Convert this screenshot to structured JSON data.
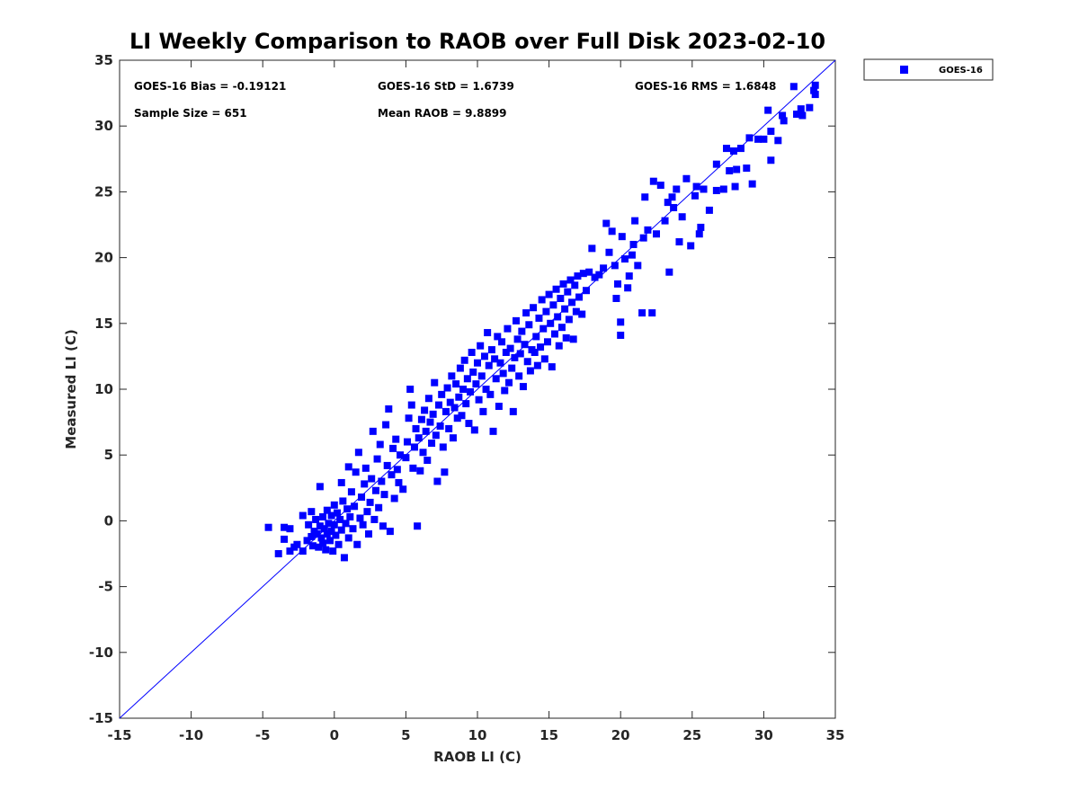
{
  "chart_data": {
    "type": "scatter",
    "title": "LI Weekly Comparison to RAOB over Full Disk 2023-02-10",
    "xlabel": "RAOB LI (C)",
    "ylabel": "Measured LI (C)",
    "xlim": [
      -15,
      35
    ],
    "ylim": [
      -15,
      35
    ],
    "xticks": [
      "-15",
      "-10",
      "-5",
      "0",
      "5",
      "10",
      "15",
      "20",
      "25",
      "30",
      "35"
    ],
    "yticks": [
      "-15",
      "-10",
      "-5",
      "0",
      "5",
      "10",
      "15",
      "20",
      "25",
      "30",
      "35"
    ],
    "grid": false,
    "legend_position": "outside-top-right",
    "stats": {
      "bias": "GOES-16 Bias = -0.19121",
      "std": "GOES-16 StD = 1.6739",
      "rms": "GOES-16 RMS = 1.6848",
      "sample_size": "Sample Size = 651",
      "mean_raob": "Mean RAOB = 9.8899"
    },
    "reference_line": {
      "x": [
        -15,
        35
      ],
      "y": [
        -15,
        35
      ],
      "color": "#0000ff"
    },
    "series": [
      {
        "name": "GOES-16",
        "color": "#0000ff",
        "marker": "square",
        "points": [
          [
            -4.6,
            -0.5
          ],
          [
            -3.9,
            -2.5
          ],
          [
            -3.5,
            -0.5
          ],
          [
            -3.5,
            -1.4
          ],
          [
            -3.1,
            -0.6
          ],
          [
            -3.1,
            -2.3
          ],
          [
            -2.8,
            -2.0
          ],
          [
            -2.6,
            -1.8
          ],
          [
            -2.2,
            0.4
          ],
          [
            -2.2,
            -2.3
          ],
          [
            -1.9,
            -1.5
          ],
          [
            -1.8,
            -0.3
          ],
          [
            -1.6,
            0.7
          ],
          [
            -1.6,
            -1.2
          ],
          [
            -1.5,
            -1.9
          ],
          [
            -1.4,
            -0.8
          ],
          [
            -1.3,
            0.1
          ],
          [
            -1.2,
            -1.0
          ],
          [
            -1.1,
            -2.0
          ],
          [
            -1.0,
            2.6
          ],
          [
            -1.0,
            -0.4
          ],
          [
            -0.9,
            -1.3
          ],
          [
            -0.8,
            0.3
          ],
          [
            -0.8,
            -1.7
          ],
          [
            -0.7,
            -0.6
          ],
          [
            -0.6,
            -2.2
          ],
          [
            -0.5,
            0.8
          ],
          [
            -0.5,
            -1.0
          ],
          [
            -0.4,
            -0.2
          ],
          [
            -0.3,
            -1.5
          ],
          [
            -0.2,
            0.4
          ],
          [
            -0.2,
            -0.8
          ],
          [
            -0.1,
            -2.3
          ],
          [
            0.0,
            1.2
          ],
          [
            0.0,
            -0.3
          ],
          [
            0.1,
            -1.1
          ],
          [
            0.2,
            0.6
          ],
          [
            0.3,
            -1.8
          ],
          [
            0.4,
            0.1
          ],
          [
            0.5,
            -0.7
          ],
          [
            0.5,
            2.9
          ],
          [
            0.6,
            1.5
          ],
          [
            0.7,
            -2.8
          ],
          [
            0.8,
            -0.2
          ],
          [
            0.9,
            0.9
          ],
          [
            1.0,
            4.1
          ],
          [
            1.0,
            -1.3
          ],
          [
            1.1,
            0.3
          ],
          [
            1.2,
            2.2
          ],
          [
            1.3,
            -0.6
          ],
          [
            1.4,
            1.1
          ],
          [
            1.5,
            3.7
          ],
          [
            1.6,
            -1.8
          ],
          [
            1.7,
            5.2
          ],
          [
            1.8,
            0.2
          ],
          [
            1.9,
            1.8
          ],
          [
            2.0,
            -0.3
          ],
          [
            2.1,
            2.8
          ],
          [
            2.2,
            4.0
          ],
          [
            2.3,
            0.7
          ],
          [
            2.4,
            -1.0
          ],
          [
            2.5,
            1.4
          ],
          [
            2.6,
            3.2
          ],
          [
            2.7,
            6.8
          ],
          [
            2.8,
            0.1
          ],
          [
            2.9,
            2.3
          ],
          [
            3.0,
            4.7
          ],
          [
            3.1,
            1.0
          ],
          [
            3.2,
            5.8
          ],
          [
            3.3,
            3.0
          ],
          [
            3.4,
            -0.4
          ],
          [
            3.5,
            2.0
          ],
          [
            3.6,
            7.3
          ],
          [
            3.7,
            4.2
          ],
          [
            3.8,
            8.5
          ],
          [
            3.9,
            -0.8
          ],
          [
            4.0,
            3.5
          ],
          [
            4.1,
            5.5
          ],
          [
            4.2,
            1.7
          ],
          [
            4.3,
            6.2
          ],
          [
            4.4,
            3.9
          ],
          [
            4.5,
            2.9
          ],
          [
            4.6,
            5.0
          ],
          [
            4.8,
            2.4
          ],
          [
            5.0,
            4.8
          ],
          [
            5.1,
            6.0
          ],
          [
            5.2,
            7.8
          ],
          [
            5.3,
            10.0
          ],
          [
            5.4,
            8.8
          ],
          [
            5.5,
            4.0
          ],
          [
            5.6,
            5.6
          ],
          [
            5.7,
            7.0
          ],
          [
            5.8,
            -0.4
          ],
          [
            5.9,
            6.3
          ],
          [
            6.0,
            3.8
          ],
          [
            6.1,
            7.7
          ],
          [
            6.2,
            5.2
          ],
          [
            6.3,
            8.4
          ],
          [
            6.4,
            6.8
          ],
          [
            6.5,
            4.6
          ],
          [
            6.6,
            9.3
          ],
          [
            6.7,
            7.5
          ],
          [
            6.8,
            5.9
          ],
          [
            6.9,
            8.1
          ],
          [
            7.0,
            10.5
          ],
          [
            7.1,
            6.5
          ],
          [
            7.2,
            3.0
          ],
          [
            7.3,
            8.8
          ],
          [
            7.4,
            7.2
          ],
          [
            7.5,
            9.6
          ],
          [
            7.6,
            5.6
          ],
          [
            7.7,
            3.7
          ],
          [
            7.8,
            8.3
          ],
          [
            7.9,
            10.1
          ],
          [
            8.0,
            7.0
          ],
          [
            8.1,
            9.0
          ],
          [
            8.2,
            11.0
          ],
          [
            8.3,
            6.3
          ],
          [
            8.4,
            8.6
          ],
          [
            8.5,
            10.4
          ],
          [
            8.6,
            7.8
          ],
          [
            8.7,
            9.4
          ],
          [
            8.8,
            11.6
          ],
          [
            8.9,
            8.0
          ],
          [
            9.0,
            10.0
          ],
          [
            9.1,
            12.2
          ],
          [
            9.2,
            8.9
          ],
          [
            9.3,
            10.8
          ],
          [
            9.4,
            7.4
          ],
          [
            9.5,
            9.8
          ],
          [
            9.6,
            12.8
          ],
          [
            9.7,
            11.3
          ],
          [
            9.8,
            6.9
          ],
          [
            9.9,
            10.4
          ],
          [
            10.0,
            12.0
          ],
          [
            10.1,
            9.2
          ],
          [
            10.2,
            13.3
          ],
          [
            10.3,
            11.0
          ],
          [
            10.4,
            8.3
          ],
          [
            10.5,
            12.5
          ],
          [
            10.6,
            10.0
          ],
          [
            10.7,
            14.3
          ],
          [
            10.8,
            11.8
          ],
          [
            10.9,
            9.6
          ],
          [
            11.0,
            13.0
          ],
          [
            11.1,
            6.8
          ],
          [
            11.2,
            12.3
          ],
          [
            11.3,
            10.8
          ],
          [
            11.4,
            14.0
          ],
          [
            11.5,
            8.7
          ],
          [
            11.6,
            12.0
          ],
          [
            11.7,
            13.6
          ],
          [
            11.8,
            11.2
          ],
          [
            11.9,
            9.9
          ],
          [
            12.0,
            12.8
          ],
          [
            12.1,
            14.6
          ],
          [
            12.2,
            10.5
          ],
          [
            12.3,
            13.1
          ],
          [
            12.4,
            11.6
          ],
          [
            12.5,
            8.3
          ],
          [
            12.6,
            12.4
          ],
          [
            12.7,
            15.2
          ],
          [
            12.8,
            13.8
          ],
          [
            12.9,
            11.0
          ],
          [
            13.0,
            12.7
          ],
          [
            13.1,
            14.4
          ],
          [
            13.2,
            10.2
          ],
          [
            13.3,
            13.4
          ],
          [
            13.4,
            15.8
          ],
          [
            13.5,
            12.1
          ],
          [
            13.6,
            14.9
          ],
          [
            13.7,
            11.4
          ],
          [
            13.8,
            13.0
          ],
          [
            13.9,
            16.2
          ],
          [
            14.0,
            12.8
          ],
          [
            14.1,
            14.0
          ],
          [
            14.2,
            11.8
          ],
          [
            14.3,
            15.4
          ],
          [
            14.4,
            13.2
          ],
          [
            14.5,
            16.8
          ],
          [
            14.6,
            14.6
          ],
          [
            14.7,
            12.3
          ],
          [
            14.8,
            15.9
          ],
          [
            14.9,
            13.6
          ],
          [
            15.0,
            17.2
          ],
          [
            15.1,
            15.0
          ],
          [
            15.2,
            11.7
          ],
          [
            15.3,
            16.4
          ],
          [
            15.4,
            14.2
          ],
          [
            15.5,
            17.6
          ],
          [
            15.6,
            15.5
          ],
          [
            15.7,
            13.3
          ],
          [
            15.8,
            16.9
          ],
          [
            15.9,
            14.7
          ],
          [
            16.0,
            18.0
          ],
          [
            16.1,
            16.1
          ],
          [
            16.2,
            13.9
          ],
          [
            16.3,
            17.4
          ],
          [
            16.4,
            15.3
          ],
          [
            16.5,
            18.3
          ],
          [
            16.6,
            16.6
          ],
          [
            16.7,
            13.8
          ],
          [
            16.8,
            17.9
          ],
          [
            16.9,
            15.9
          ],
          [
            17.0,
            18.6
          ],
          [
            17.1,
            17.0
          ],
          [
            17.3,
            15.7
          ],
          [
            17.4,
            18.8
          ],
          [
            17.6,
            17.5
          ],
          [
            17.8,
            18.9
          ],
          [
            18.0,
            20.7
          ],
          [
            18.2,
            18.5
          ],
          [
            18.5,
            18.7
          ],
          [
            18.8,
            19.2
          ],
          [
            19.0,
            22.6
          ],
          [
            19.2,
            20.4
          ],
          [
            19.4,
            22.0
          ],
          [
            19.6,
            19.4
          ],
          [
            19.7,
            16.9
          ],
          [
            19.8,
            18.0
          ],
          [
            20.0,
            15.1
          ],
          [
            20.0,
            14.1
          ],
          [
            20.1,
            21.6
          ],
          [
            20.3,
            19.9
          ],
          [
            20.5,
            17.7
          ],
          [
            20.6,
            18.6
          ],
          [
            20.8,
            20.2
          ],
          [
            20.9,
            21.0
          ],
          [
            21.0,
            22.8
          ],
          [
            21.2,
            19.4
          ],
          [
            21.5,
            15.8
          ],
          [
            21.6,
            21.5
          ],
          [
            21.7,
            24.6
          ],
          [
            21.9,
            22.1
          ],
          [
            22.2,
            15.8
          ],
          [
            22.3,
            25.8
          ],
          [
            22.5,
            21.8
          ],
          [
            22.8,
            25.5
          ],
          [
            23.1,
            22.8
          ],
          [
            23.3,
            24.2
          ],
          [
            23.4,
            18.9
          ],
          [
            23.6,
            24.6
          ],
          [
            23.7,
            23.8
          ],
          [
            23.9,
            25.2
          ],
          [
            24.1,
            21.2
          ],
          [
            24.3,
            23.1
          ],
          [
            24.6,
            26.0
          ],
          [
            24.9,
            20.9
          ],
          [
            25.2,
            24.7
          ],
          [
            25.3,
            25.4
          ],
          [
            25.5,
            21.8
          ],
          [
            25.6,
            22.3
          ],
          [
            25.8,
            25.2
          ],
          [
            26.2,
            23.6
          ],
          [
            26.7,
            25.1
          ],
          [
            26.7,
            27.1
          ],
          [
            27.2,
            25.2
          ],
          [
            27.4,
            28.3
          ],
          [
            27.6,
            26.6
          ],
          [
            27.9,
            28.1
          ],
          [
            28.0,
            25.4
          ],
          [
            28.1,
            26.7
          ],
          [
            28.4,
            28.3
          ],
          [
            28.8,
            26.8
          ],
          [
            29.0,
            29.1
          ],
          [
            29.2,
            25.6
          ],
          [
            29.6,
            29.0
          ],
          [
            30.0,
            29.0
          ],
          [
            30.3,
            31.2
          ],
          [
            30.5,
            27.4
          ],
          [
            30.5,
            29.6
          ],
          [
            31.0,
            28.9
          ],
          [
            31.3,
            30.8
          ],
          [
            31.4,
            30.4
          ],
          [
            32.1,
            33.0
          ],
          [
            32.3,
            30.9
          ],
          [
            32.6,
            31.3
          ],
          [
            32.7,
            30.8
          ],
          [
            33.2,
            31.4
          ],
          [
            33.5,
            32.7
          ],
          [
            33.6,
            33.1
          ],
          [
            33.6,
            32.4
          ]
        ]
      }
    ]
  }
}
